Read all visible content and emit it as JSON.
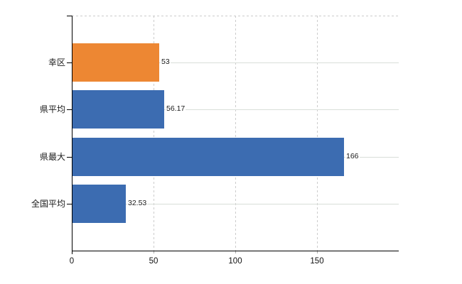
{
  "chart_data": {
    "type": "bar",
    "orientation": "horizontal",
    "title": "",
    "xlabel": "",
    "ylabel": "",
    "legend": "none",
    "grid": "on",
    "categories": [
      "幸区",
      "県平均",
      "県最大",
      "全国平均"
    ],
    "values": [
      53,
      56.17,
      166,
      32.53
    ],
    "value_labels": [
      "53",
      "56.17",
      "166",
      "32.53"
    ],
    "bar_colors": [
      "#ED8733",
      "#3C6CB1",
      "#3C6CB1",
      "#3C6CB1"
    ],
    "highlight_color": "#ED8733",
    "default_color": "#3C6CB1",
    "xlim": [
      0,
      200
    ],
    "x_ticks": [
      0,
      50,
      100,
      150
    ],
    "x_tick_labels": [
      "0",
      "50",
      "100",
      "150"
    ],
    "axis_color": "#000000",
    "v_gridline_color": "#cccccc",
    "h_gridline_color": "#d9ded9",
    "background_color": "#ffffff"
  }
}
